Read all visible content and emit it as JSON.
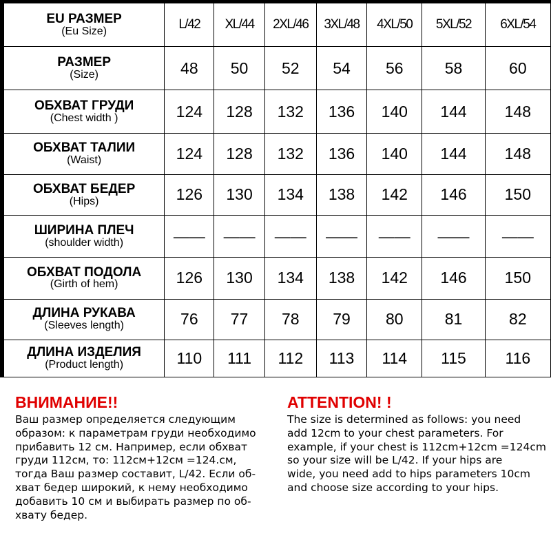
{
  "table": {
    "sizes": [
      "L/42",
      "XL/44",
      "2XL/46",
      "3XL/48",
      "4XL/50",
      "5XL/52",
      "6XL/54"
    ],
    "header": {
      "ru": "EU РАЗМЕР",
      "en": "(Eu Size)"
    },
    "rows": [
      {
        "ru": "РАЗМЕР",
        "en": "(Size)",
        "values": [
          "48",
          "50",
          "52",
          "54",
          "56",
          "58",
          "60"
        ]
      },
      {
        "ru": "ОБХВАТ ГРУДИ",
        "en": "(Chest width )",
        "values": [
          "124",
          "128",
          "132",
          "136",
          "140",
          "144",
          "148"
        ]
      },
      {
        "ru": "ОБХВАТ ТАЛИИ",
        "en": "(Waist)",
        "values": [
          "124",
          "128",
          "132",
          "136",
          "140",
          "144",
          "148"
        ]
      },
      {
        "ru": "ОБХВАТ БЕДЕР",
        "en": "(Hips)",
        "values": [
          "126",
          "130",
          "134",
          "138",
          "142",
          "146",
          "150"
        ]
      },
      {
        "ru": "ШИРИНА ПЛЕЧ",
        "en": "(shoulder width)",
        "values": [
          "——",
          "——",
          "——",
          "——",
          "——",
          "——",
          "——"
        ]
      },
      {
        "ru": "ОБХВАТ ПОДОЛА",
        "en": "(Girth of hem)",
        "values": [
          "126",
          "130",
          "134",
          "138",
          "142",
          "146",
          "150"
        ]
      },
      {
        "ru": "ДЛИНА РУКАВА",
        "en": "(Sleeves length)",
        "values": [
          "76",
          "77",
          "78",
          "79",
          "80",
          "81",
          "82"
        ]
      },
      {
        "ru": "ДЛИНА ИЗДЕЛИЯ",
        "en": "(Product length)",
        "values": [
          "110",
          "111",
          "112",
          "113",
          "114",
          "115",
          "116"
        ]
      }
    ]
  },
  "notes": {
    "ru": {
      "title": "ВНИМАНИЕ!!",
      "text": "Ваш размер определяется следующим\nобразом: к параметрам груди необходимо\nприбавить 12 см. Например, если обхват\nгруди  112см, то: 112см+12см =124.см,\nтогда Ваш размер составит,   L/42. Если об-\nхват бедер широкий, к нему необходимо\nдобавить 10 см и выбирать размер по об-\nхвату бедер."
    },
    "en": {
      "title": "ATTENTION! !",
      "text": "The size is determined as follows: you need\nadd 12cm to your chest parameters. For\nexample, if your chest is 112cm+12cm =124cm\nso your size will be L/42. If your hips are\nwide, you need add to hips parameters 10cm\nand choose size according to your hips."
    },
    "title_color": "#e00000"
  }
}
